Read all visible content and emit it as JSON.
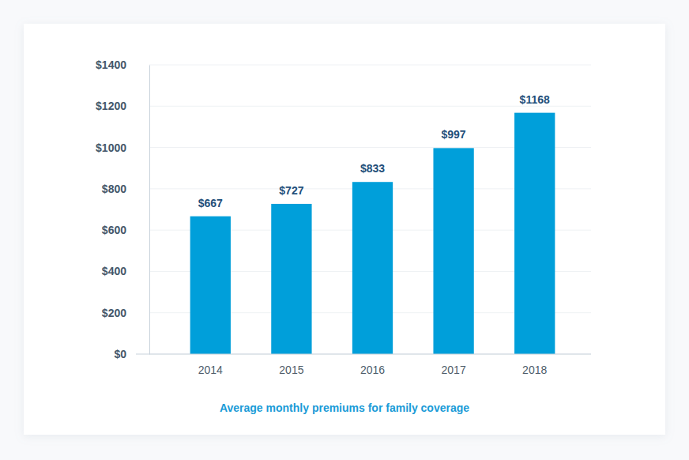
{
  "chart_data": {
    "type": "bar",
    "title": "Average monthly premiums for family coverage",
    "categories": [
      "2014",
      "2015",
      "2016",
      "2017",
      "2018"
    ],
    "values": [
      667,
      727,
      833,
      997,
      1168
    ],
    "value_labels": [
      "$667",
      "$727",
      "$833",
      "$997",
      "$1168"
    ],
    "data_labels": true,
    "color": "#009fda",
    "ylim": [
      0,
      1400
    ],
    "yticks": [
      {
        "value": 0,
        "label": "$0"
      },
      {
        "value": 200,
        "label": "$200"
      },
      {
        "value": 400,
        "label": "$400"
      },
      {
        "value": 600,
        "label": "$600"
      },
      {
        "value": 800,
        "label": "$800"
      },
      {
        "value": 1000,
        "label": "$1000"
      },
      {
        "value": 1200,
        "label": "$1200"
      },
      {
        "value": 1400,
        "label": "$1400"
      }
    ],
    "grid": true
  }
}
